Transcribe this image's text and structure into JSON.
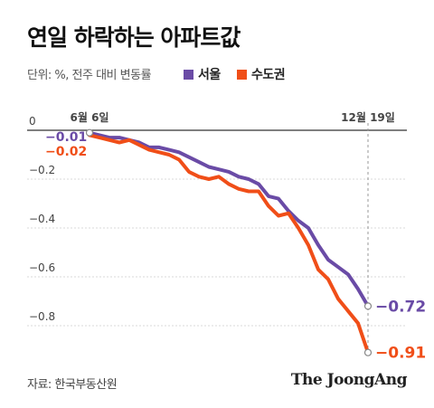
{
  "title": "연일 하락하는 아파트값",
  "unit_note": "단위: %, 전주 대비 변동률",
  "legend": [
    {
      "label": "서울",
      "color": "#6a4ba6"
    },
    {
      "label": "수도권",
      "color": "#f04e18"
    }
  ],
  "source": "자료: 한국부동산원",
  "brand": "The JoongAng",
  "chart_data": {
    "type": "line",
    "title": "연일 하락하는 아파트값",
    "xlabel": "",
    "ylabel": "",
    "y_ticks": [
      "0",
      "−0.2",
      "−0.4",
      "−0.6",
      "−0.8"
    ],
    "y_tick_values": [
      0,
      -0.2,
      -0.4,
      -0.6,
      -0.8
    ],
    "ylim": [
      -0.95,
      0.0
    ],
    "x_labels": [
      "6월 6일",
      "12월 19일"
    ],
    "x": [
      "6월 6일",
      "6월 13일",
      "6월 20일",
      "6월 27일",
      "7월 4일",
      "7월 11일",
      "7월 18일",
      "7월 25일",
      "8월 1일",
      "8월 8일",
      "8월 15일",
      "8월 22일",
      "8월 29일",
      "9월 5일",
      "9월 12일",
      "9월 19일",
      "9월 26일",
      "10월 3일",
      "10월 10일",
      "10월 17일",
      "10월 24일",
      "10월 31일",
      "11월 7일",
      "11월 14일",
      "11월 21일",
      "11월 28일",
      "12월 5일",
      "12월 12일",
      "12월 19일"
    ],
    "series": [
      {
        "name": "서울",
        "color": "#6a4ba6",
        "values": [
          -0.01,
          -0.02,
          -0.03,
          -0.03,
          -0.04,
          -0.05,
          -0.07,
          -0.07,
          -0.08,
          -0.09,
          -0.11,
          -0.13,
          -0.15,
          -0.16,
          -0.17,
          -0.19,
          -0.2,
          -0.22,
          -0.27,
          -0.28,
          -0.33,
          -0.37,
          -0.4,
          -0.47,
          -0.53,
          -0.56,
          -0.59,
          -0.65,
          -0.72
        ],
        "first_label": "−0.01",
        "last_label": "−0.72"
      },
      {
        "name": "수도권",
        "color": "#f04e18",
        "values": [
          -0.02,
          -0.03,
          -0.04,
          -0.05,
          -0.04,
          -0.06,
          -0.08,
          -0.09,
          -0.1,
          -0.12,
          -0.17,
          -0.19,
          -0.2,
          -0.19,
          -0.22,
          -0.24,
          -0.25,
          -0.25,
          -0.31,
          -0.35,
          -0.34,
          -0.4,
          -0.47,
          -0.57,
          -0.61,
          -0.69,
          -0.74,
          -0.79,
          -0.91
        ],
        "first_label": "−0.02",
        "last_label": "−0.91"
      }
    ]
  }
}
